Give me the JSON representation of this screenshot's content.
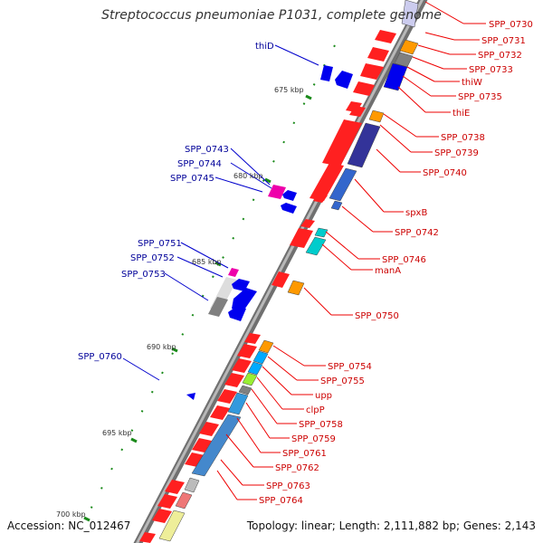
{
  "title": "Streptococcus pneumoniae P1031, complete genome",
  "accession": "Accession: NC_012467",
  "topology": "Topology: linear; Length: 2,111,882 bp; Genes: 2,143",
  "colors": {
    "forward_gene": "#ff0000",
    "reverse_gene": "#0000ff",
    "forward_label": "#cc0000",
    "reverse_label": "#000099",
    "backbone": "#888888",
    "tick": "#008000"
  },
  "scale_labels": [
    "675 kbp",
    "680 kbp",
    "685 kbp",
    "690 kbp",
    "695 kbp",
    "700 kbp"
  ],
  "forward_labels": [
    "SPP_0730",
    "SPP_0731",
    "SPP_0732",
    "SPP_0733",
    "thiW",
    "SPP_0735",
    "thiE",
    "SPP_0738",
    "SPP_0739",
    "SPP_0740",
    "spxB",
    "SPP_0742",
    "SPP_0746",
    "manA",
    "SPP_0750",
    "SPP_0754",
    "SPP_0755",
    "upp",
    "clpP",
    "SPP_0758",
    "SPP_0759",
    "SPP_0761",
    "SPP_0762",
    "SPP_0763",
    "SPP_0764"
  ],
  "reverse_labels": [
    "thiD",
    "SPP_0743",
    "SPP_0744",
    "SPP_0745",
    "SPP_0751",
    "SPP_0752",
    "SPP_0753",
    "SPP_0760"
  ]
}
